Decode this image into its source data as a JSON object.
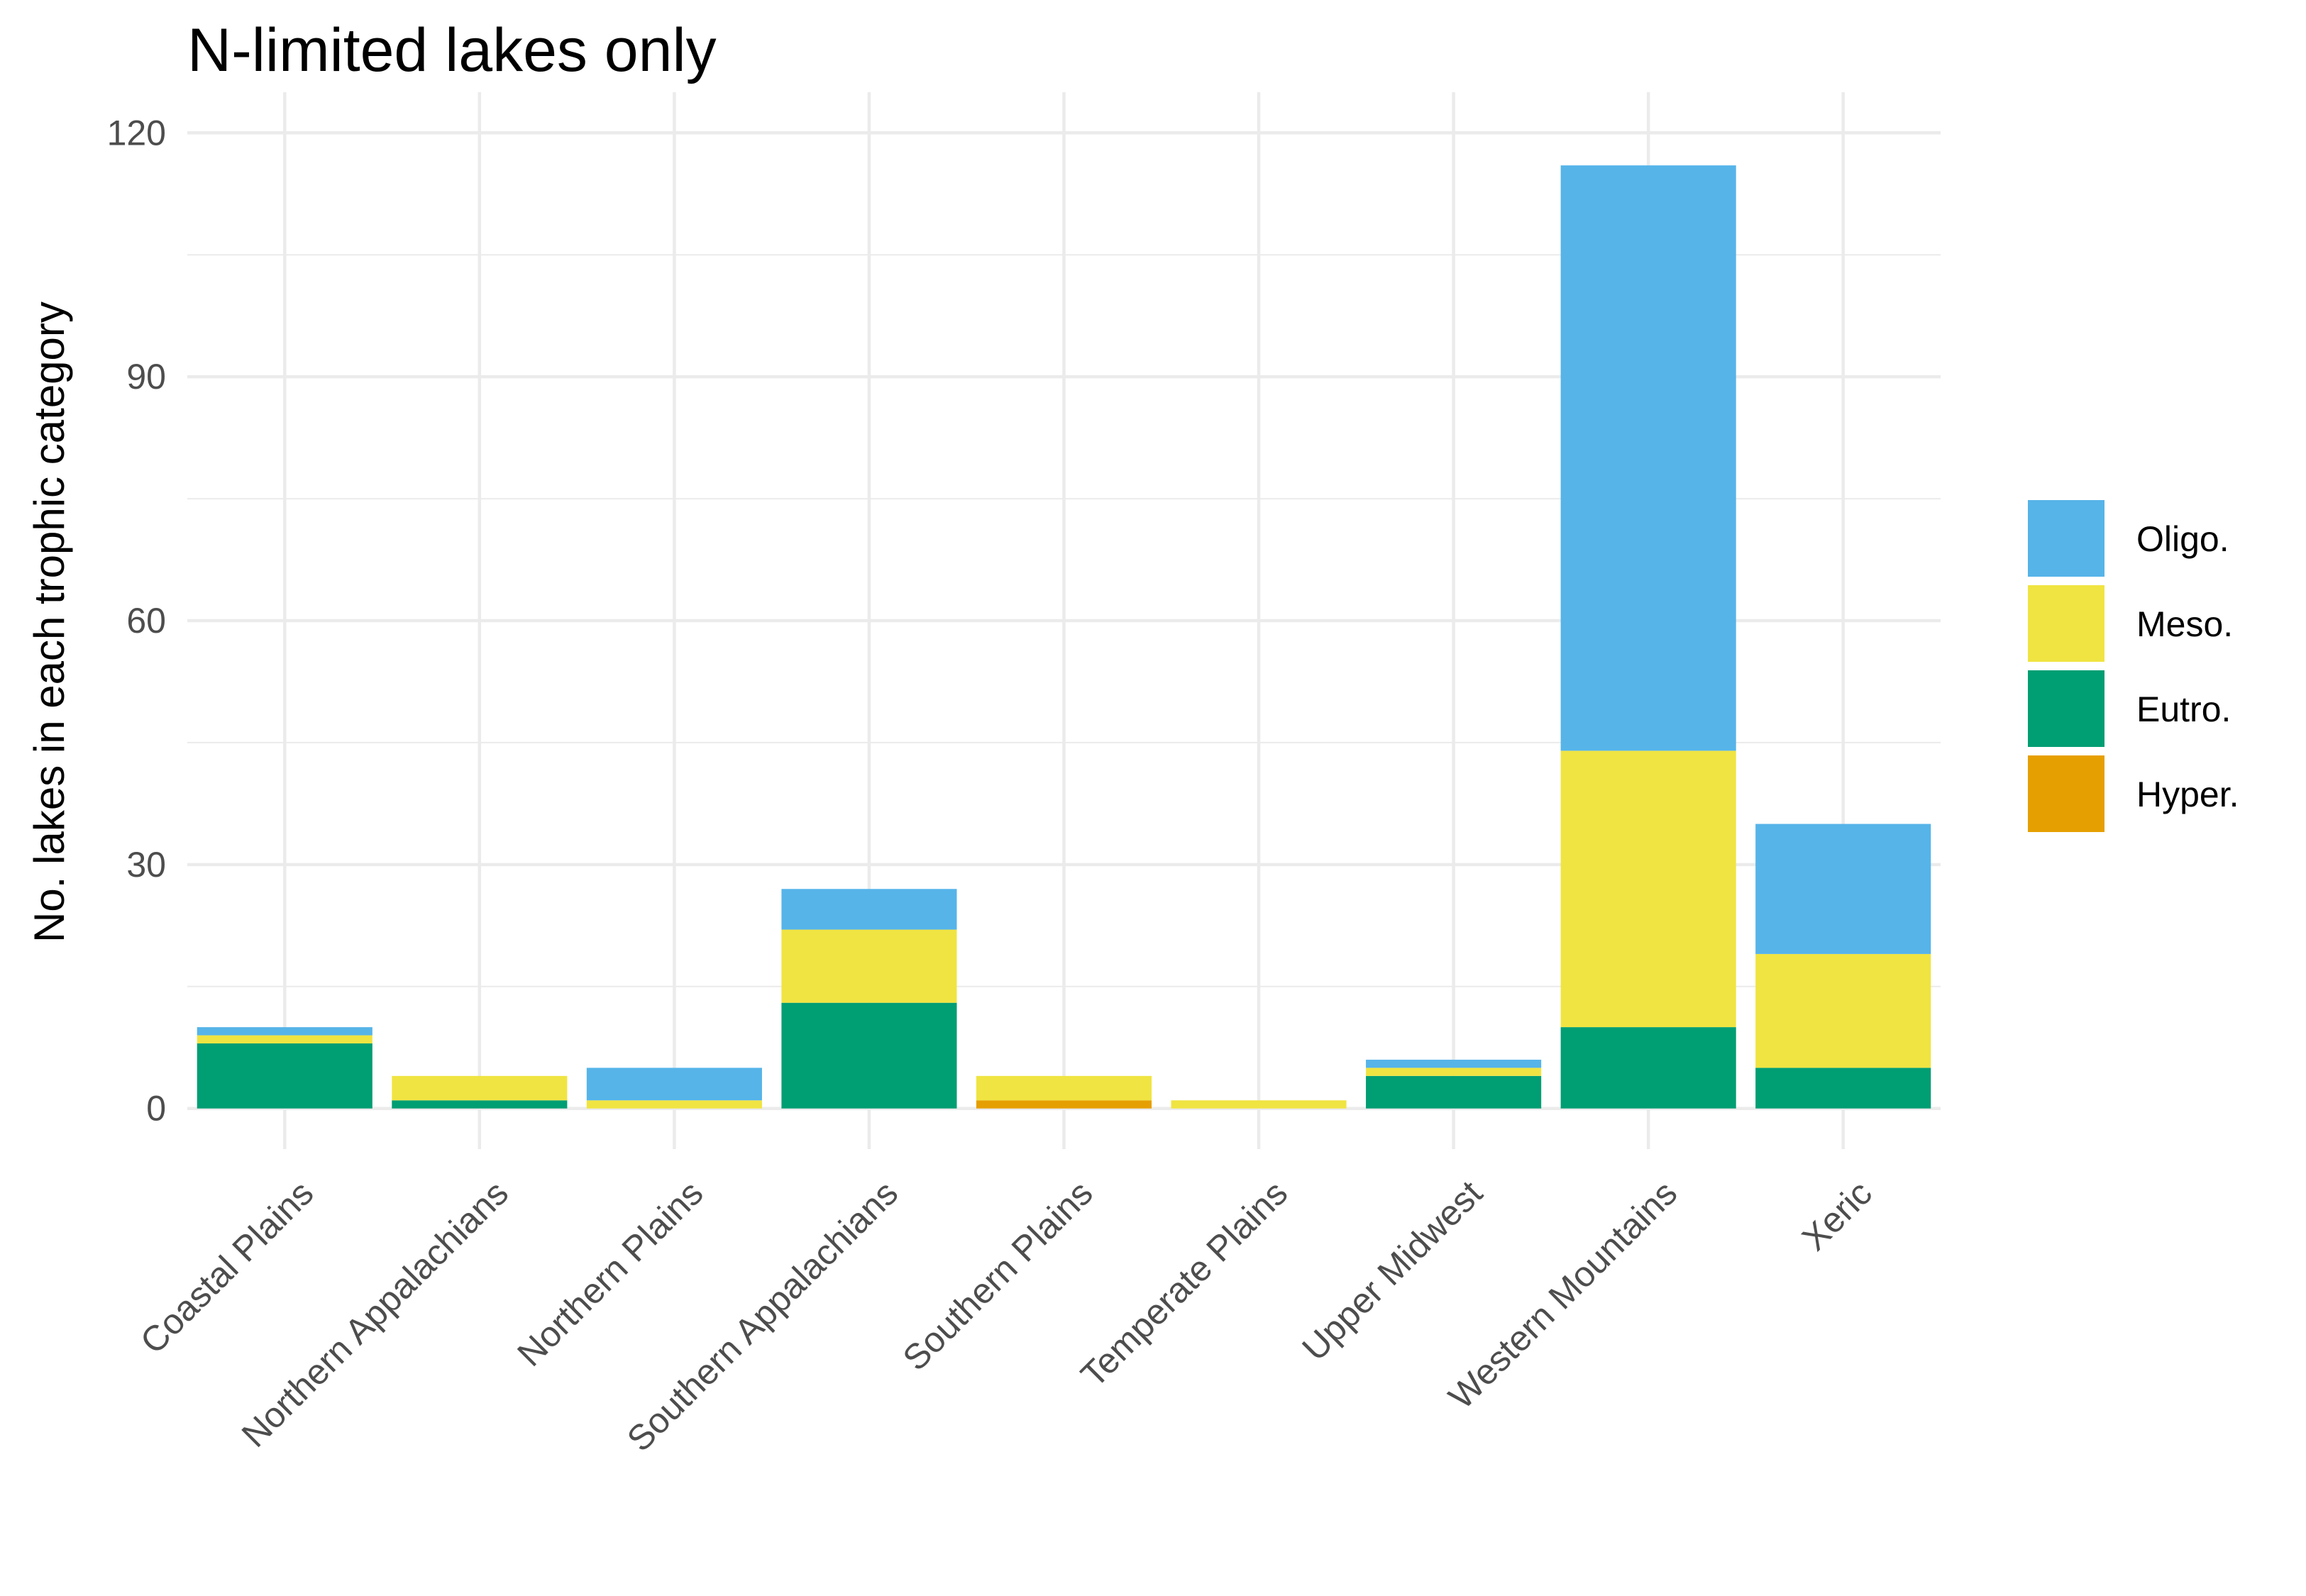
{
  "chart_data": {
    "type": "bar",
    "stacked": true,
    "title": "N-limited lakes only",
    "ylabel": "No. lakes in each trophic category",
    "xlabel": "",
    "ylim": [
      -5,
      125
    ],
    "yticks": [
      0,
      30,
      60,
      90,
      120
    ],
    "grid": true,
    "legend_position": "right",
    "categories": [
      "Coastal Plains",
      "Northern Appalachians",
      "Northern Plains",
      "Southern Appalachians",
      "Southern Plains",
      "Temperate Plains",
      "Upper Midwest",
      "Western Mountains",
      "Xeric"
    ],
    "series": [
      {
        "name": "Hyper.",
        "color": "#E69F00",
        "values": [
          0,
          0,
          0,
          0,
          1,
          0,
          0,
          0,
          0
        ]
      },
      {
        "name": "Eutro.",
        "color": "#009E73",
        "values": [
          8,
          1,
          0,
          13,
          0,
          0,
          4,
          10,
          5
        ]
      },
      {
        "name": "Meso.",
        "color": "#F0E442",
        "values": [
          1,
          3,
          1,
          9,
          3,
          1,
          1,
          34,
          14
        ]
      },
      {
        "name": "Oligo.",
        "color": "#56B4E9",
        "values": [
          1,
          0,
          4,
          5,
          0,
          0,
          1,
          72,
          16
        ]
      }
    ],
    "legend_order": [
      "Oligo.",
      "Meso.",
      "Eutro.",
      "Hyper."
    ]
  }
}
